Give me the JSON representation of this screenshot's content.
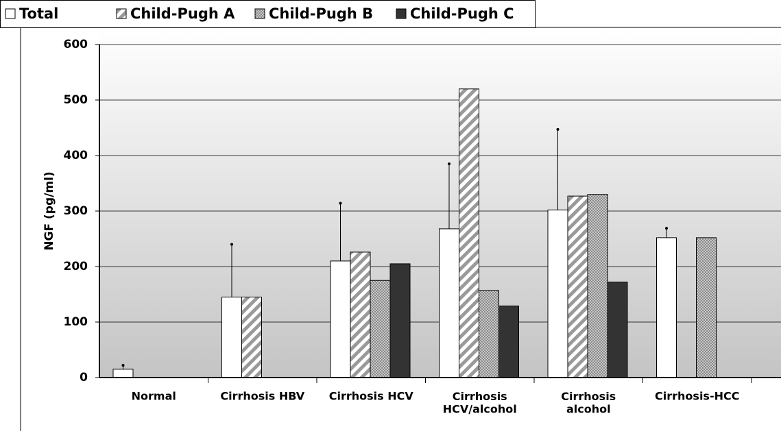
{
  "chart_data": {
    "type": "bar",
    "y_label": "NGF (pg/ml)",
    "categories": [
      "Normal",
      "Cirrhosis HBV",
      "Cirrhosis HCV",
      "Cirrhosis\nHCV/alcohol",
      "Cirrhosis\nalcohol",
      "Cirrhosis-HCC"
    ],
    "series": [
      {
        "name": "Total",
        "color": "#ffffff",
        "pattern": "solid",
        "values": [
          15,
          145,
          210,
          268,
          302,
          252
        ],
        "errors": [
          7,
          95,
          104,
          117,
          145,
          17
        ]
      },
      {
        "name": "Child-Pugh A",
        "color": "#9a9a9a",
        "pattern": "hatch",
        "values": [
          null,
          145,
          226,
          520,
          327,
          null
        ]
      },
      {
        "name": "Child-Pugh B",
        "color": "#8a8a8a",
        "pattern": "dots",
        "values": [
          null,
          null,
          175,
          157,
          330,
          252
        ]
      },
      {
        "name": "Child-Pugh C",
        "color": "#333333",
        "pattern": "solid",
        "values": [
          null,
          null,
          205,
          129,
          172,
          null
        ]
      }
    ],
    "ylim": [
      0,
      600
    ],
    "yticks": [
      0,
      100,
      200,
      300,
      400,
      500,
      600
    ],
    "grid": true,
    "legend": "top"
  }
}
